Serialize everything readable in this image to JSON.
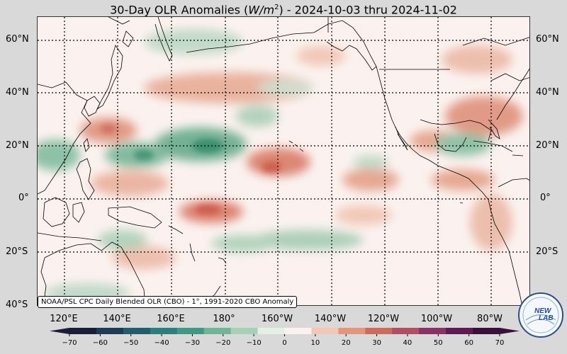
{
  "title": {
    "prefix": "30-Day OLR Anomalies (",
    "unit_base": "W/m",
    "unit_exp": "2",
    "suffix": ") - 2024-10-03 thru 2024-11-02"
  },
  "lat_labels": [
    "60°N",
    "40°N",
    "20°N",
    "0°",
    "20°S",
    "40°S"
  ],
  "lon_labels": [
    "120°E",
    "140°E",
    "160°E",
    "180°",
    "160°W",
    "140°W",
    "120°W",
    "100°W",
    "80°W"
  ],
  "credit": "NOAA/PSL CPC Daily Blended OLR (CBO) - 1°, 1991-2020 CBO Anomaly",
  "logo_text": {
    "top": "NEW",
    "bottom": "LAB"
  },
  "colorbar": {
    "ticks": [
      "−70",
      "−60",
      "−50",
      "−40",
      "−30",
      "−20",
      "−10",
      "0",
      "10",
      "20",
      "30",
      "40",
      "50",
      "60",
      "70"
    ],
    "colors": [
      "#1a1c3a",
      "#1d3b58",
      "#1f5e6d",
      "#2a7f7d",
      "#3f9a85",
      "#6fb598",
      "#a8d0b6",
      "#e4efe6",
      "#fbf2ef",
      "#f2c7b4",
      "#e4957c",
      "#cf6a5f",
      "#b24d62",
      "#8c3166",
      "#5e1a55",
      "#3b0f3c"
    ]
  },
  "map": {
    "land_color": "#000000",
    "colors": {
      "green": "#3f9a75",
      "red": "#d8604c"
    }
  }
}
